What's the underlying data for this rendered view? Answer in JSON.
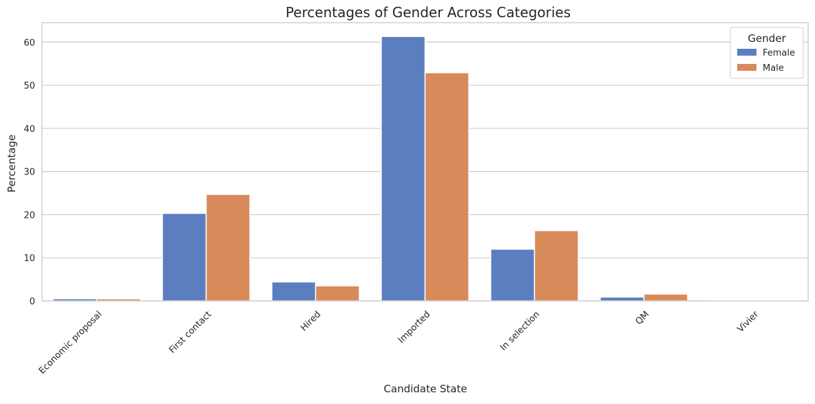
{
  "chart_data": {
    "type": "bar",
    "title": "Percentages of Gender Across Categories",
    "xlabel": "Candidate State",
    "ylabel": "Percentage",
    "categories": [
      "Economic proposal",
      "First contact",
      "Hired",
      "Imported",
      "In selection",
      "QM",
      "Vivier"
    ],
    "series": [
      {
        "name": "Female",
        "color": "#5b7ec1",
        "values": [
          0.5,
          20.3,
          4.4,
          61.3,
          12.0,
          0.9,
          0.1
        ]
      },
      {
        "name": "Male",
        "color": "#d98a5b",
        "values": [
          0.5,
          24.7,
          3.5,
          52.9,
          16.3,
          1.6,
          0.1
        ]
      }
    ],
    "ylim": [
      0,
      64.5
    ],
    "yticks": [
      0,
      10,
      20,
      30,
      40,
      50,
      60
    ],
    "grid": "horizontal",
    "legend": {
      "title": "Gender",
      "placement": "top-right"
    }
  }
}
